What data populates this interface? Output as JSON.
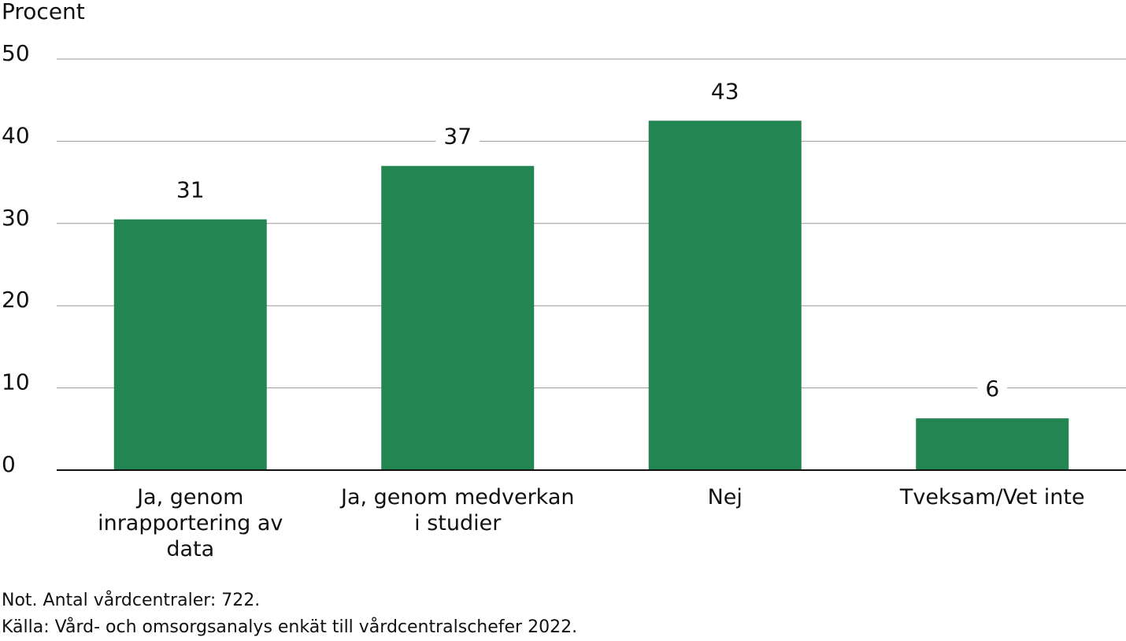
{
  "chart_data": {
    "type": "bar",
    "y_label": "Procent",
    "categories": [
      "Ja, genom\ninrapportering av\ndata",
      "Ja, genom medverkan\ni studier",
      "Nej",
      "Tveksam/Vet inte"
    ],
    "values": [
      30.5,
      37,
      42.5,
      6.3
    ],
    "value_labels": [
      "31",
      "37",
      "43",
      "6"
    ],
    "color": "#238551",
    "ylim": [
      0,
      50
    ],
    "yticks": [
      0,
      10,
      20,
      30,
      40,
      50
    ],
    "grid": true,
    "notes": [
      "Not. Antal vårdcentraler: 722.",
      "Källa: Vård- och omsorgsanalys enkät till vårdcentralschefer 2022."
    ]
  }
}
